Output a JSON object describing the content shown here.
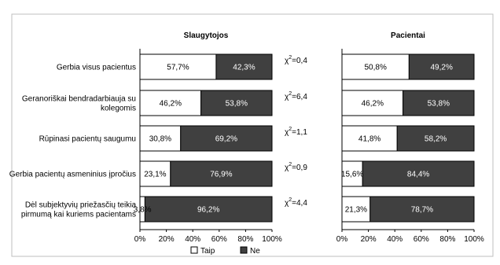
{
  "chart_data": {
    "type": "bar",
    "orientation": "horizontal",
    "stacked": "percent",
    "categories": [
      [
        "Gerbia visus pacientus"
      ],
      [
        "Geranoriškai bendradarbiauja su",
        "kolegomis"
      ],
      [
        "Rūpinasi pacientų saugumu"
      ],
      [
        "Gerbia pacientų asmeninius įpročius"
      ],
      [
        "Dėl subjektyvių priežasčių teikia",
        "pirmumą kai kuriems pacientams"
      ]
    ],
    "panels": [
      {
        "title": "Slaugytojos",
        "series": [
          {
            "name": "Taip",
            "values": [
              57.7,
              46.2,
              30.8,
              23.1,
              3.8
            ],
            "labels": [
              "57,7%",
              "46,2%",
              "30,8%",
              "23,1%",
              "3,8%"
            ]
          },
          {
            "name": "Ne",
            "values": [
              42.3,
              53.8,
              69.2,
              76.9,
              96.2
            ],
            "labels": [
              "42,3%",
              "53,8%",
              "69,2%",
              "76,9%",
              "96,2%"
            ]
          }
        ]
      },
      {
        "title": "Pacientai",
        "series": [
          {
            "name": "Taip",
            "values": [
              50.8,
              46.2,
              41.8,
              15.6,
              21.3
            ],
            "labels": [
              "50,8%",
              "46,2%",
              "41,8%",
              "15,6%",
              "21,3%"
            ]
          },
          {
            "name": "Ne",
            "values": [
              49.2,
              53.8,
              58.2,
              84.4,
              78.7
            ],
            "labels": [
              "49,2%",
              "53,8%",
              "58,2%",
              "84,4%",
              "78,7%"
            ]
          }
        ]
      }
    ],
    "chi_square": [
      "=0,4",
      "=6,4",
      "=1,1",
      "=0,9",
      "=4,4"
    ],
    "chi_symbol": "χ",
    "chi_exp": "2",
    "xticks": [
      "0%",
      "20%",
      "40%",
      "60%",
      "80%",
      "100%"
    ],
    "xlim": [
      0,
      100
    ],
    "legend": {
      "position": "bottom",
      "entries": [
        "Taip",
        "Ne"
      ]
    },
    "colors": {
      "taip": "#ffffff",
      "ne": "#404040",
      "border": "#000000"
    },
    "grid": false
  }
}
